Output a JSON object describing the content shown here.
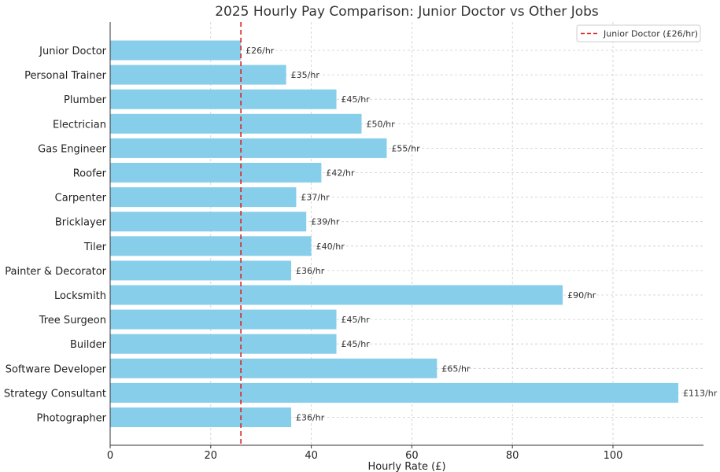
{
  "chart_data": {
    "type": "bar",
    "orientation": "horizontal",
    "title": "2025 Hourly Pay Comparison: Junior Doctor vs Other Jobs",
    "xlabel": "Hourly Rate (£)",
    "ylabel": "",
    "xlim": [
      0,
      118
    ],
    "xticks": [
      0,
      20,
      40,
      60,
      80,
      100
    ],
    "grid": true,
    "categories": [
      "Junior Doctor",
      "Personal Trainer",
      "Plumber",
      "Electrician",
      "Gas Engineer",
      "Roofer",
      "Carpenter",
      "Bricklayer",
      "Tiler",
      "Painter & Decorator",
      "Locksmith",
      "Tree Surgeon",
      "Builder",
      "Software Developer",
      "Strategy Consultant",
      "Photographer"
    ],
    "values": [
      26,
      35,
      45,
      50,
      55,
      42,
      37,
      39,
      40,
      36,
      90,
      45,
      45,
      65,
      113,
      36
    ],
    "data_labels": [
      "£26/hr",
      "£35/hr",
      "£45/hr",
      "£50/hr",
      "£55/hr",
      "£42/hr",
      "£37/hr",
      "£39/hr",
      "£40/hr",
      "£36/hr",
      "£90/hr",
      "£45/hr",
      "£45/hr",
      "£65/hr",
      "£113/hr",
      "£36/hr"
    ],
    "bar_color": "#87ceeb",
    "reference_line": {
      "value": 26,
      "label": "Junior Doctor (£26/hr)",
      "color": "#dd2222",
      "style": "dashed"
    },
    "legend": {
      "placement": "top-right",
      "entries": [
        "Junior Doctor (£26/hr)"
      ]
    }
  }
}
